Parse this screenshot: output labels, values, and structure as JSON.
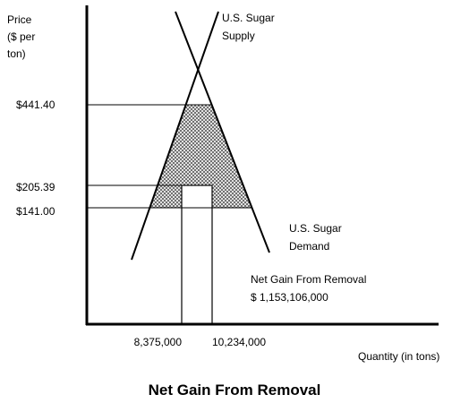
{
  "y_axis_label": [
    "Price",
    "($ per",
    "ton)"
  ],
  "x_axis_label": "Quantity (in tons)",
  "price_labels": [
    "$441.40",
    "$205.39",
    "$141.00"
  ],
  "quantity_labels": [
    "8,375,000",
    "10,234,000"
  ],
  "supply_label": [
    "U.S. Sugar",
    "Supply"
  ],
  "demand_label": [
    "U.S. Sugar",
    "Demand"
  ],
  "net_gain_label": [
    "Net Gain From Removal",
    "$ 1,153,106,000"
  ],
  "title": "Net Gain From Removal"
}
